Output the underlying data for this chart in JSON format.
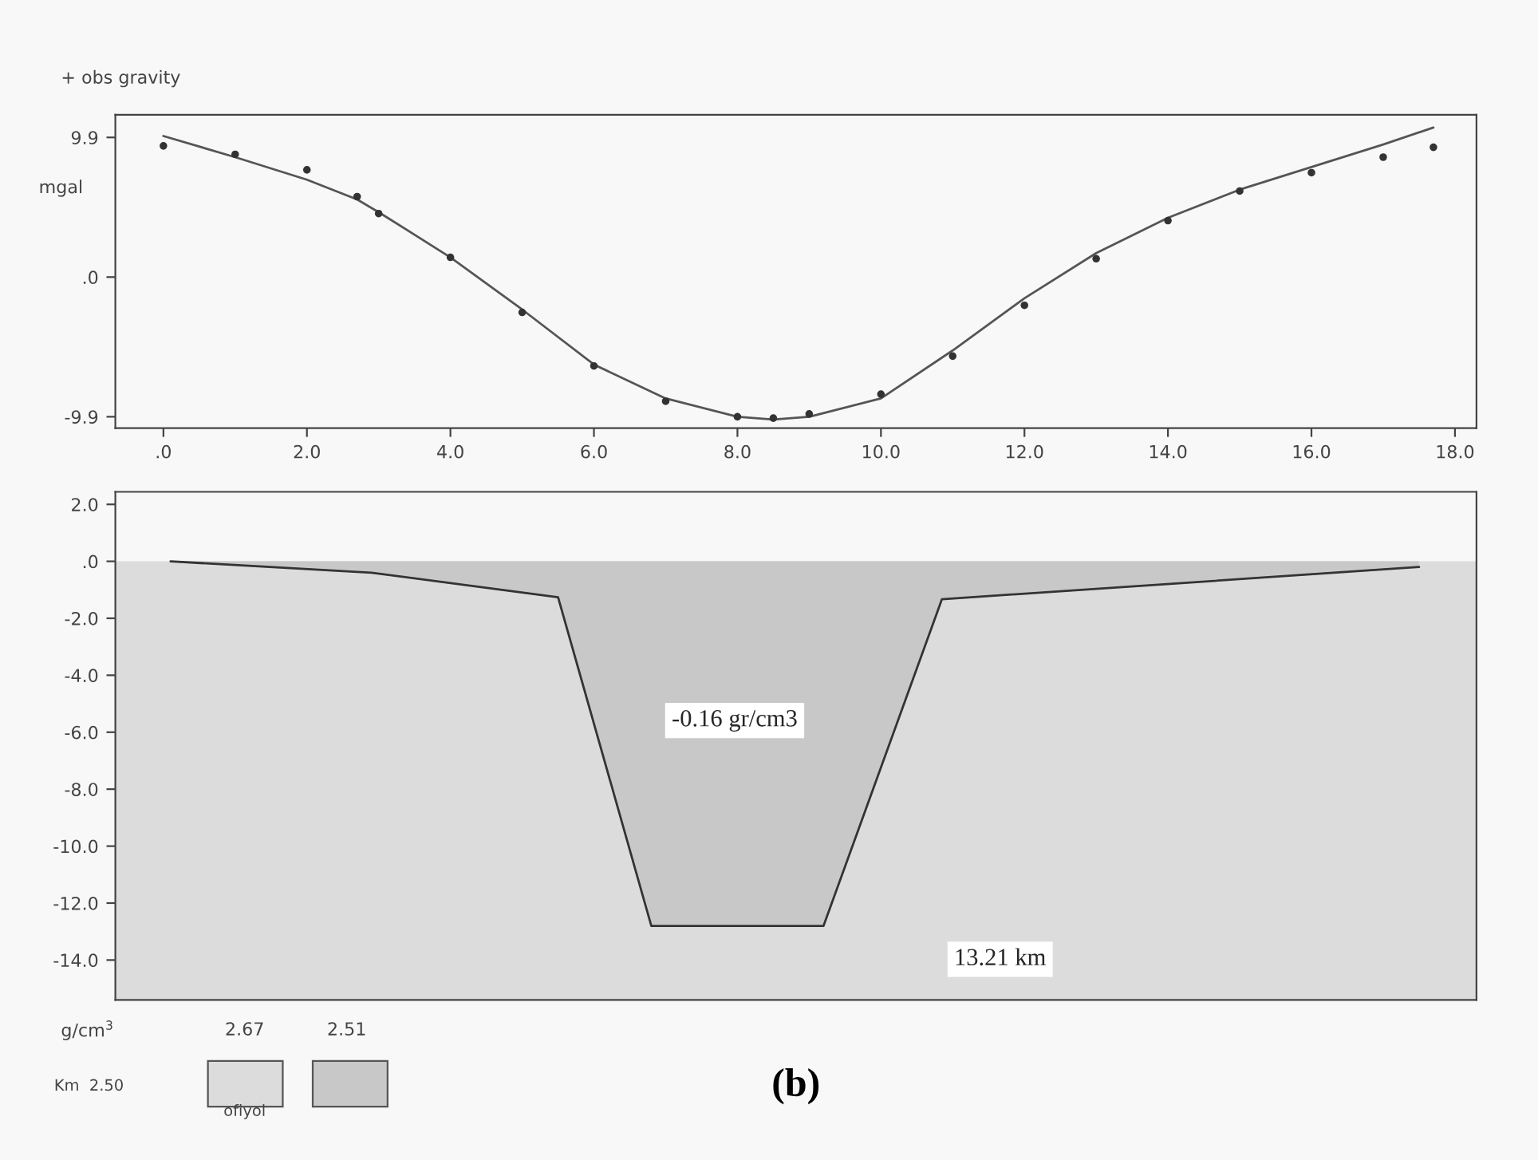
{
  "chart_data": [
    {
      "type": "line",
      "ylabel": "mgal",
      "annotations": [
        "+ obs gravity"
      ],
      "xlim": [
        -0.67,
        18.3
      ],
      "ylim": [
        -10.7,
        11.5
      ],
      "xticks": [
        {
          "value": 0,
          "label": ".0"
        },
        {
          "value": 2,
          "label": "2.0"
        },
        {
          "value": 4,
          "label": "4.0"
        },
        {
          "value": 6,
          "label": "6.0"
        },
        {
          "value": 8,
          "label": "8.0"
        },
        {
          "value": 10,
          "label": "10.0"
        },
        {
          "value": 12,
          "label": "12.0"
        },
        {
          "value": 14,
          "label": "14.0"
        },
        {
          "value": 16,
          "label": "16.0"
        },
        {
          "value": 18,
          "label": "18.0"
        }
      ],
      "yticks": [
        {
          "value": 9.9,
          "label": "9.9"
        },
        {
          "value": 0,
          "label": ".0"
        },
        {
          "value": -9.9,
          "label": "-9.9"
        }
      ],
      "grid": false,
      "legend": false,
      "series": [
        {
          "type": "scatter",
          "color": "#333333",
          "marker": "circle",
          "x": [
            0,
            1,
            2,
            2.7,
            3,
            4,
            5,
            6,
            7,
            8,
            8.5,
            9,
            10,
            11,
            12,
            13,
            14,
            15,
            16,
            17,
            17.7
          ],
          "values": [
            9.3,
            8.7,
            7.6,
            5.7,
            4.5,
            1.4,
            -2.5,
            -6.3,
            -8.8,
            -9.9,
            -10.0,
            -9.7,
            -8.3,
            -5.6,
            -2.0,
            1.3,
            4.0,
            6.1,
            7.4,
            8.5,
            9.2
          ]
        },
        {
          "type": "line",
          "color": "#555555",
          "marker": "none",
          "line_style": "solid",
          "x": [
            0,
            1,
            2,
            2.7,
            3,
            4,
            5,
            6,
            7,
            8,
            8.5,
            9,
            10,
            11,
            12,
            13,
            14,
            15,
            16,
            17,
            17.7
          ],
          "values": [
            10.0,
            8.5,
            6.9,
            5.5,
            4.6,
            1.4,
            -2.3,
            -6.2,
            -8.6,
            -9.9,
            -10.1,
            -9.9,
            -8.6,
            -5.2,
            -1.5,
            1.7,
            4.2,
            6.2,
            7.8,
            9.4,
            10.6
          ]
        }
      ]
    },
    {
      "type": "area",
      "xlim": [
        -0.67,
        18.3
      ],
      "ylim": [
        -15.4,
        2.44
      ],
      "tick_labels": "y",
      "yticks": [
        {
          "value": 2,
          "label": "2.0"
        },
        {
          "value": 0,
          "label": ".0"
        },
        {
          "value": -2,
          "label": "-2.0"
        },
        {
          "value": -4,
          "label": "-4.0"
        },
        {
          "value": -6,
          "label": "-6.0"
        },
        {
          "value": -8,
          "label": "-8.0"
        },
        {
          "value": -10,
          "label": "-10.0"
        },
        {
          "value": -12,
          "label": "-12.0"
        },
        {
          "value": -14,
          "label": "-14.0"
        }
      ],
      "grid": false,
      "legend": false,
      "bands": [
        {
          "axis": "y",
          "from": -15.4,
          "to": 0,
          "color": "#dcdcdc"
        }
      ],
      "series": [
        {
          "color": "#c8c8c8",
          "x": [
            0.1,
            2.9,
            5.5,
            6.8,
            9.2,
            10.85,
            17.5
          ],
          "values": [
            0,
            -0.4,
            -1.26,
            -12.8,
            -12.8,
            -1.33,
            -0.2
          ]
        }
      ],
      "annotations": [
        "-0.16 gr/cm3",
        "13.21 km",
        "g/cm$^{3}$",
        "2.67",
        "2.51",
        "Km  2.50",
        "ofiyol",
        "(b)"
      ]
    }
  ]
}
